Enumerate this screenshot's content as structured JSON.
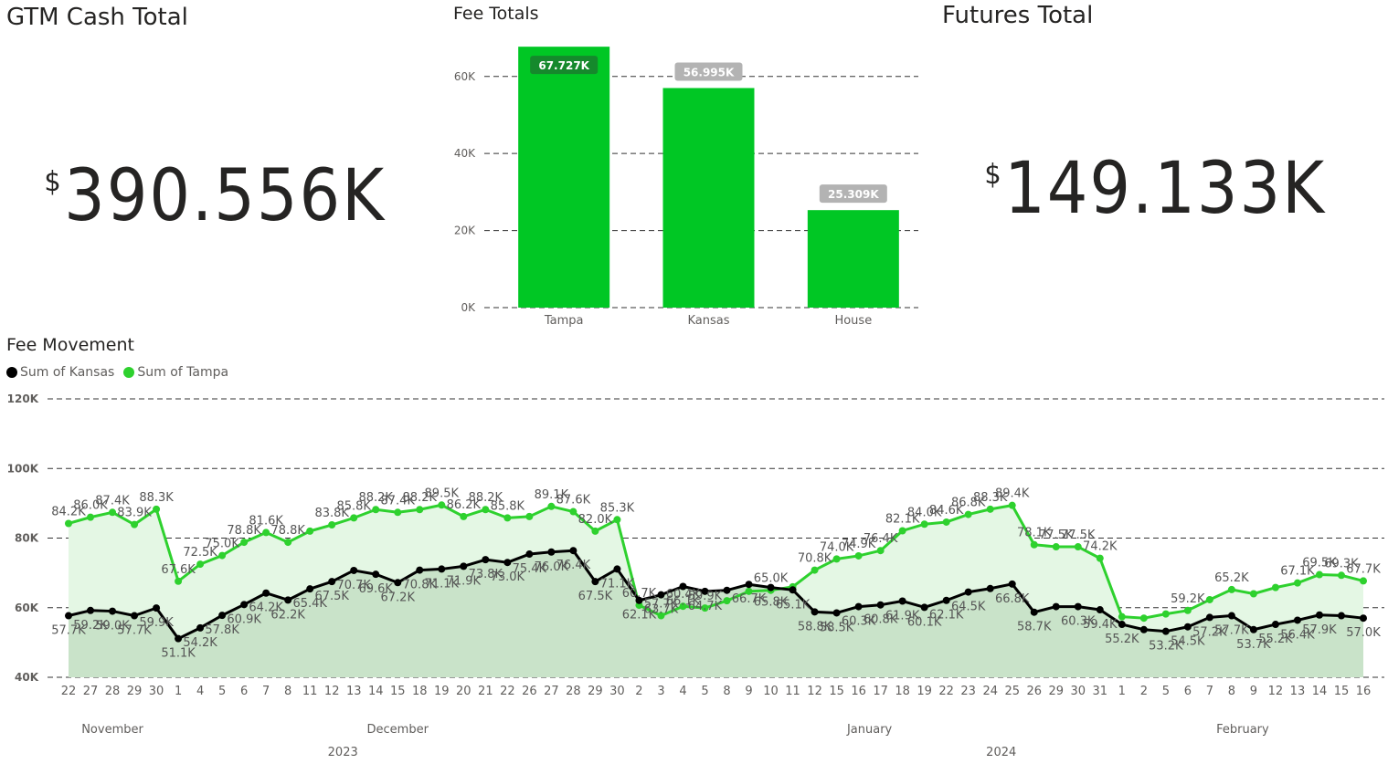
{
  "cards": {
    "gtm": {
      "title": "GTM Cash Total",
      "currency": "$",
      "value": "390.556K"
    },
    "futures": {
      "title": "Futures Total",
      "currency": "$",
      "value": "149.133K"
    }
  },
  "chart_data": [
    {
      "type": "bar",
      "title": "Fee Totals",
      "categories": [
        "Tampa",
        "Kansas",
        "House"
      ],
      "values": [
        67727,
        56995,
        25309
      ],
      "data_labels": [
        "67.727K",
        "56.995K",
        "25.309K"
      ],
      "ylim": [
        0,
        68000
      ],
      "y_ticks": [
        0,
        20000,
        40000,
        60000
      ],
      "y_tick_labels": [
        "0K",
        "20K",
        "40K",
        "60K"
      ],
      "grid": true,
      "colors": {
        "bar": "#00c724",
        "label_highlight": "#15892c",
        "label_default": "#b3b3b3"
      }
    },
    {
      "type": "line",
      "title": "Fee Movement",
      "legend": {
        "placement": "top-left",
        "entries": [
          "Sum of Kansas",
          "Sum of Tampa"
        ]
      },
      "ylim": [
        40000,
        120000
      ],
      "y_ticks": [
        40000,
        60000,
        80000,
        100000,
        120000
      ],
      "y_tick_labels": [
        "40K",
        "60K",
        "80K",
        "100K",
        "120K"
      ],
      "grid": true,
      "x": [
        "22",
        "27",
        "28",
        "29",
        "30",
        "1",
        "4",
        "5",
        "6",
        "7",
        "8",
        "11",
        "12",
        "13",
        "14",
        "15",
        "18",
        "19",
        "20",
        "21",
        "22",
        "26",
        "27",
        "28",
        "29",
        "30",
        "2",
        "3",
        "4",
        "5",
        "8",
        "9",
        "10",
        "11",
        "12",
        "15",
        "16",
        "17",
        "18",
        "19",
        "22",
        "23",
        "24",
        "25",
        "26",
        "29",
        "30",
        "31",
        "1",
        "2",
        "5",
        "6",
        "7",
        "8",
        "9",
        "12",
        "13",
        "14",
        "15",
        "16"
      ],
      "months": [
        {
          "label": "November",
          "start": 0,
          "end": 4
        },
        {
          "label": "December",
          "start": 5,
          "end": 25
        },
        {
          "label": "January",
          "start": 26,
          "end": 47
        },
        {
          "label": "February",
          "start": 48,
          "end": 59
        }
      ],
      "years": [
        {
          "label": "2023",
          "start": 0,
          "end": 25
        },
        {
          "label": "2024",
          "start": 26,
          "end": 59
        }
      ],
      "series": [
        {
          "name": "Sum of Kansas",
          "color": "#000000",
          "fill": "#c9e3c9",
          "values": [
            57700,
            59200,
            59000,
            57700,
            59900,
            51100,
            54200,
            57800,
            60900,
            64200,
            62200,
            65400,
            67500,
            70700,
            69600,
            67200,
            70800,
            71100,
            71900,
            73800,
            73000,
            75400,
            76000,
            76400,
            67500,
            71100,
            62100,
            63700,
            66100,
            64700,
            65000,
            66700,
            65800,
            65100,
            58800,
            58500,
            60300,
            60800,
            61900,
            60100,
            62100,
            64500,
            65500,
            66800,
            58700,
            60300,
            60300,
            59400,
            55200,
            53700,
            53200,
            54500,
            57200,
            57700,
            53700,
            55200,
            56400,
            57900,
            57700,
            57000
          ],
          "labels": [
            "57.7K",
            "59.2K",
            "59.0K",
            "57.7K",
            "59.9K",
            "51.1K",
            "54.2K",
            "57.8K",
            "60.9K",
            "64.2K",
            "62.2K",
            "65.4K",
            "67.5K",
            "70.7K",
            "69.6K",
            "67.2K",
            "70.8K",
            "71.1K",
            "71.9K",
            "73.8K",
            "73.0K",
            "75.4K",
            "76.0K",
            "76.4K",
            "67.5K",
            "71.1K",
            "62.1K",
            "63.7K",
            "66.1K",
            "64.7K",
            "",
            "66.7K",
            "65.8K",
            "65.1K",
            "58.8K",
            "58.5K",
            "60.3K",
            "60.8K",
            "61.9K",
            "60.1K",
            "62.1K",
            "64.5K",
            "",
            "66.8K",
            "58.7K",
            "",
            "60.3K",
            "59.4K",
            "55.2K",
            "",
            "53.2K",
            "54.5K",
            "57.2K",
            "57.7K",
            "53.7K",
            "55.2K",
            "56.4K",
            "57.9K",
            "",
            "57.0K"
          ]
        },
        {
          "name": "Sum of Tampa",
          "color": "#2ed12e",
          "fill": "#e4f7e4",
          "values": [
            84200,
            86000,
            87400,
            83900,
            88300,
            67600,
            72500,
            75000,
            78800,
            81600,
            78800,
            82000,
            83800,
            85800,
            88200,
            87400,
            88200,
            89500,
            86200,
            88200,
            85800,
            86200,
            89100,
            87600,
            82000,
            85300,
            60700,
            57700,
            60400,
            59900,
            62000,
            64700,
            65000,
            66000,
            70800,
            74000,
            74900,
            76400,
            82100,
            84000,
            84600,
            86800,
            88300,
            89400,
            78100,
            77500,
            77500,
            74200,
            57400,
            57000,
            58200,
            59200,
            62300,
            65200,
            64000,
            65800,
            67100,
            69500,
            69300,
            67700
          ],
          "labels": [
            "84.2K",
            "86.0K",
            "87.4K",
            "83.9K",
            "88.3K",
            "67.6K",
            "72.5K",
            "75.0K",
            "78.8K",
            "81.6K",
            "78.8K",
            "",
            "83.8K",
            "85.8K",
            "88.2K",
            "87.4K",
            "88.2K",
            "89.5K",
            "86.2K",
            "88.2K",
            "85.8K",
            "",
            "89.1K",
            "87.6K",
            "82.0K",
            "85.3K",
            "60.7K",
            "57.7K",
            "60.4K",
            "59.9K",
            "",
            "",
            "65.0K",
            "",
            "70.8K",
            "74.0K",
            "74.9K",
            "76.4K",
            "82.1K",
            "84.0K",
            "84.6K",
            "86.8K",
            "88.3K",
            "89.4K",
            "78.1K",
            "77.5K",
            "77.5K",
            "74.2K",
            "",
            "",
            "",
            "59.2K",
            "",
            "65.2K",
            "",
            "",
            "67.1K",
            "69.5K",
            "69.3K",
            "67.7K"
          ]
        }
      ]
    }
  ]
}
